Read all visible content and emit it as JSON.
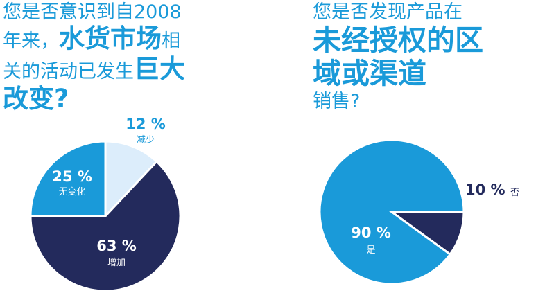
{
  "left_question": {
    "line1": "您是否意识到自2008",
    "line2_normal": "年来，",
    "line2_bold": "水货市场",
    "line2_tail": "相",
    "line3_normal": "关的活动已发生",
    "line3_bold": "巨大",
    "line4_bold": "改变?"
  },
  "right_question": {
    "line1": "您是否发现产品在",
    "line2_bold": "未经授权的区",
    "line3_bold": "域或渠道",
    "line4": "销售?"
  },
  "colors": {
    "title": "#1a9ad9",
    "navy": "#232a5c",
    "blue": "#1a9ad9",
    "light": "#dcedfb"
  },
  "chart_data": [
    {
      "type": "pie",
      "start_angle_deg": 0,
      "slices": [
        {
          "label": "减少",
          "pct_text": "12 %",
          "value": 12,
          "color": "#dcedfb",
          "label_color": "#1a9ad9"
        },
        {
          "label": "增加",
          "pct_text": "63 %",
          "value": 63,
          "color": "#232a5c",
          "label_color": "#ffffff"
        },
        {
          "label": "无变化",
          "pct_text": "25 %",
          "value": 25,
          "color": "#1a9ad9",
          "label_color": "#ffffff"
        }
      ]
    },
    {
      "type": "pie",
      "start_angle_deg": 90,
      "slices": [
        {
          "label": "否",
          "pct_text": "10 %",
          "value": 10,
          "color": "#232a5c",
          "label_color": "#232a5c"
        },
        {
          "label": "是",
          "pct_text": "90 %",
          "value": 90,
          "color": "#1a9ad9",
          "label_color": "#ffffff"
        }
      ]
    }
  ]
}
